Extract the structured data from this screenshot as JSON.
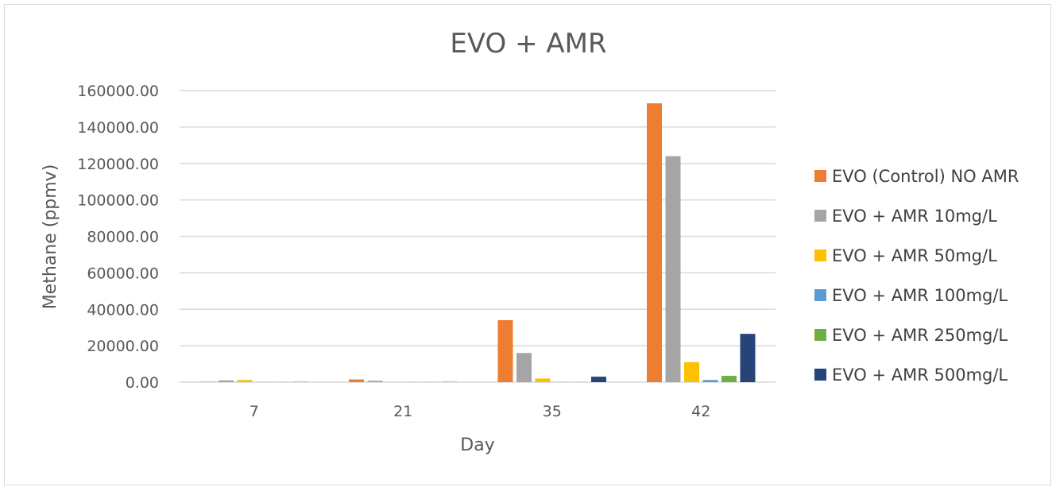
{
  "chart_data": {
    "type": "bar",
    "title": "EVO + AMR",
    "xlabel": "Day",
    "ylabel": "Methane (ppmv)",
    "ylim": [
      0,
      160000
    ],
    "ytick_step": 20000,
    "grid": true,
    "legend_position": "right",
    "categories": [
      "7",
      "21",
      "35",
      "42"
    ],
    "series": [
      {
        "name": "EVO (Control) NO AMR",
        "color": "#ed7d31",
        "values": [
          200,
          1500,
          34000,
          153000
        ]
      },
      {
        "name": "EVO + AMR 10mg/L",
        "color": "#a5a5a5",
        "values": [
          1000,
          800,
          16000,
          124000
        ]
      },
      {
        "name": "EVO + AMR 50mg/L",
        "color": "#ffc000",
        "values": [
          1200,
          100,
          2000,
          11000
        ]
      },
      {
        "name": "EVO + AMR 100mg/L",
        "color": "#5b9bd5",
        "values": [
          100,
          100,
          100,
          1200
        ]
      },
      {
        "name": "EVO + AMR 250mg/L",
        "color": "#70ad47",
        "values": [
          100,
          100,
          100,
          3500
        ]
      },
      {
        "name": "EVO + AMR 500mg/L",
        "color": "#264478",
        "values": [
          100,
          100,
          3000,
          26500
        ]
      }
    ]
  }
}
